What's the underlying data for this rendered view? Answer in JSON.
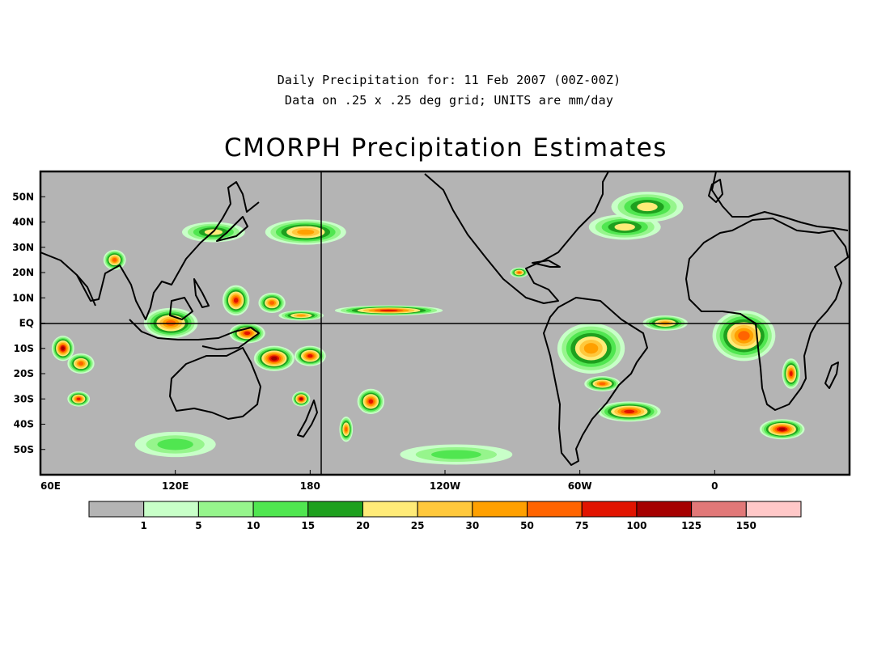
{
  "header": {
    "subtitle_line1": "Daily Precipitation for: 11 Feb 2007 (00Z-00Z)",
    "subtitle_line2": "Data on .25 x .25 deg grid; UNITS are mm/day",
    "title": "CMORPH Precipitation Estimates"
  },
  "map": {
    "projection": "cylindrical equidistant",
    "lon_range": [
      60,
      420
    ],
    "lat_range": [
      -60,
      60
    ],
    "lat_tick_labels": [
      "50N",
      "40N",
      "30N",
      "20N",
      "10N",
      "EQ",
      "10S",
      "20S",
      "30S",
      "40S",
      "50S"
    ],
    "lon_tick_labels": [
      "60E",
      "120E",
      "180",
      "120W",
      "60W",
      "0"
    ],
    "reference_lines": [
      "EQ",
      "180"
    ],
    "background_color": "#b4b4b4",
    "coastline_color": "#000000"
  },
  "colorbar": {
    "bin_colors": [
      "#b4b4b4",
      "#c8ffc8",
      "#96f58c",
      "#50e650",
      "#1ea01e",
      "#ffeb78",
      "#ffc83c",
      "#ffa000",
      "#ff6400",
      "#e11400",
      "#a50000",
      "#e17878",
      "#ffc8c8"
    ],
    "boundary_labels": [
      "1",
      "5",
      "10",
      "15",
      "20",
      "25",
      "30",
      "50",
      "75",
      "100",
      "125",
      "150"
    ]
  },
  "chart_data": {
    "type": "heatmap",
    "title": "CMORPH Precipitation Estimates",
    "subtitle": [
      "Daily Precipitation for: 11 Feb 2007 (00Z-00Z)",
      "Data on .25 x .25 deg grid; UNITS are mm/day"
    ],
    "units": "mm/day",
    "levels": [
      1,
      5,
      10,
      15,
      20,
      25,
      30,
      50,
      75,
      100,
      125,
      150
    ],
    "x_axis": {
      "range_deg_east": [
        60,
        420
      ],
      "tick_labels": [
        "60E",
        "120E",
        "180",
        "120W",
        "60W",
        "0"
      ]
    },
    "y_axis": {
      "range_deg": [
        -60,
        60
      ],
      "tick_labels": [
        "50N",
        "40N",
        "30N",
        "20N",
        "10N",
        "EQ",
        "10S",
        "20S",
        "30S",
        "40S",
        "50S"
      ]
    },
    "grid": false,
    "precip_regions": [
      {
        "lon": 93,
        "lat": 25,
        "rx": 5,
        "ry": 4,
        "peak": 50
      },
      {
        "lon": 137,
        "lat": 36,
        "rx": 14,
        "ry": 4,
        "peak": 20
      },
      {
        "lon": 178,
        "lat": 36,
        "rx": 18,
        "ry": 5,
        "peak": 30
      },
      {
        "lon": 147,
        "lat": 9,
        "rx": 6,
        "ry": 6,
        "peak": 75
      },
      {
        "lon": 163,
        "lat": 8,
        "rx": 6,
        "ry": 4,
        "peak": 50
      },
      {
        "lon": 118,
        "lat": 0,
        "rx": 12,
        "ry": 6,
        "peak": 50
      },
      {
        "lon": 152,
        "lat": -4,
        "rx": 8,
        "ry": 4,
        "peak": 75
      },
      {
        "lon": 70,
        "lat": -10,
        "rx": 5,
        "ry": 5,
        "peak": 100
      },
      {
        "lon": 78,
        "lat": -16,
        "rx": 6,
        "ry": 4,
        "peak": 50
      },
      {
        "lon": 77,
        "lat": -30,
        "rx": 5,
        "ry": 3,
        "peak": 75
      },
      {
        "lon": 164,
        "lat": -14,
        "rx": 9,
        "ry": 5,
        "peak": 100
      },
      {
        "lon": 180,
        "lat": -13,
        "rx": 7,
        "ry": 4,
        "peak": 75
      },
      {
        "lon": 176,
        "lat": -30,
        "rx": 4,
        "ry": 3,
        "peak": 100
      },
      {
        "lon": 207,
        "lat": -31,
        "rx": 6,
        "ry": 5,
        "peak": 75
      },
      {
        "lon": 196,
        "lat": -42,
        "rx": 3,
        "ry": 5,
        "peak": 50
      },
      {
        "lon": 215,
        "lat": 5,
        "rx": 24,
        "ry": 2,
        "peak": 75
      },
      {
        "lon": 176,
        "lat": 3,
        "rx": 10,
        "ry": 2,
        "peak": 30
      },
      {
        "lon": 273,
        "lat": 20,
        "rx": 4,
        "ry": 2,
        "peak": 50
      },
      {
        "lon": 305,
        "lat": -10,
        "rx": 15,
        "ry": 10,
        "peak": 30
      },
      {
        "lon": 310,
        "lat": -24,
        "rx": 8,
        "ry": 3,
        "peak": 50
      },
      {
        "lon": 322,
        "lat": -35,
        "rx": 14,
        "ry": 4,
        "peak": 75
      },
      {
        "lon": 338,
        "lat": 0,
        "rx": 10,
        "ry": 3,
        "peak": 30
      },
      {
        "lon": 373,
        "lat": -5,
        "rx": 14,
        "ry": 10,
        "peak": 50
      },
      {
        "lon": 394,
        "lat": -20,
        "rx": 4,
        "ry": 6,
        "peak": 75
      },
      {
        "lon": 390,
        "lat": -42,
        "rx": 10,
        "ry": 4,
        "peak": 100
      },
      {
        "lon": 320,
        "lat": 38,
        "rx": 16,
        "ry": 5,
        "peak": 20
      },
      {
        "lon": 330,
        "lat": 46,
        "rx": 16,
        "ry": 6,
        "peak": 20
      },
      {
        "lon": 120,
        "lat": -48,
        "rx": 18,
        "ry": 5,
        "peak": 10
      },
      {
        "lon": 245,
        "lat": -52,
        "rx": 25,
        "ry": 4,
        "peak": 10
      }
    ]
  }
}
